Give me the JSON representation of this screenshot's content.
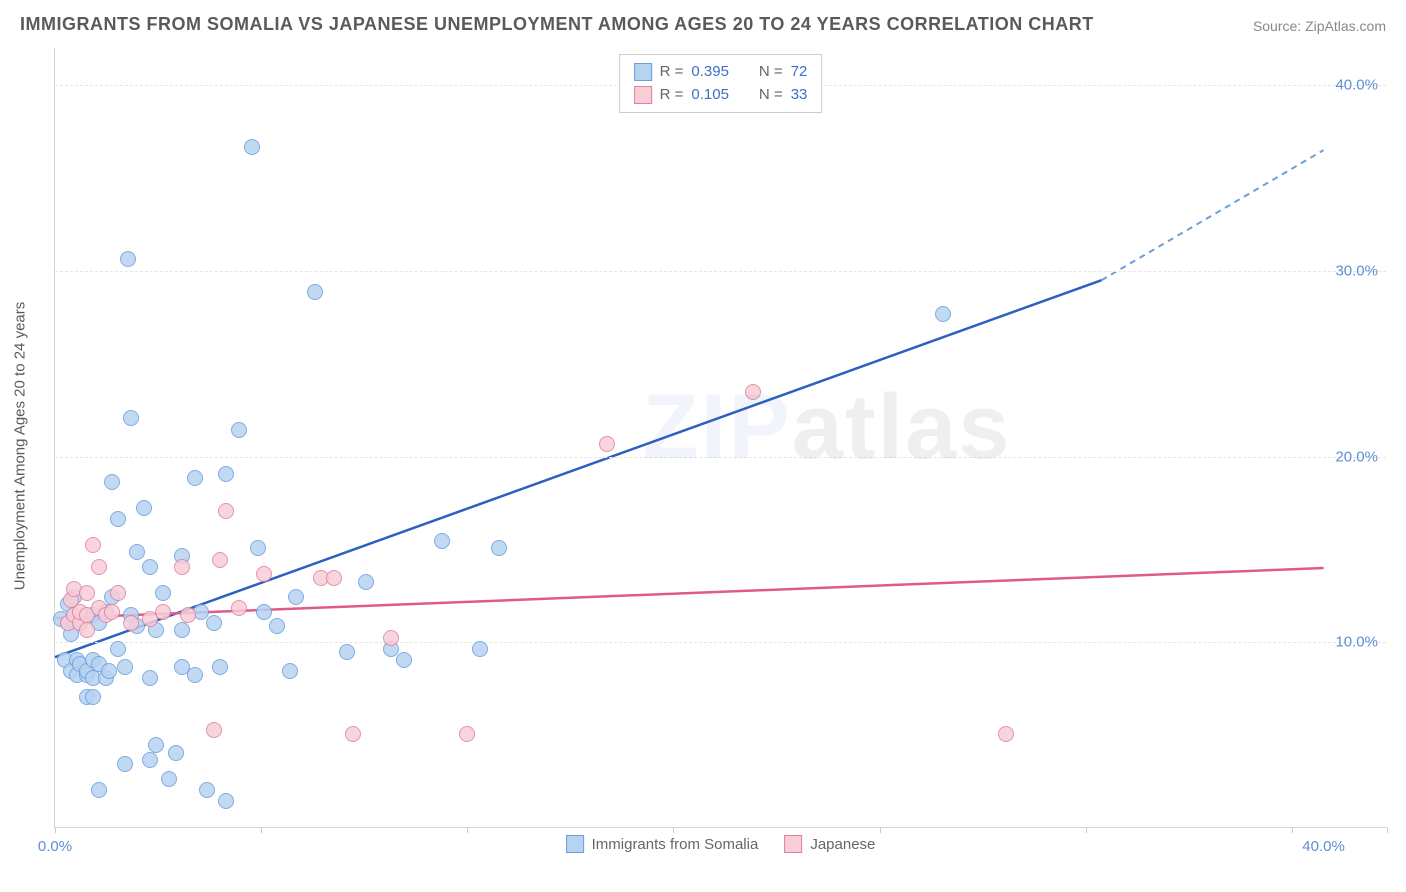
{
  "title": "IMMIGRANTS FROM SOMALIA VS JAPANESE UNEMPLOYMENT AMONG AGES 20 TO 24 YEARS CORRELATION CHART",
  "source_label": "Source: ZipAtlas.com",
  "y_axis_title": "Unemployment Among Ages 20 to 24 years",
  "watermark": {
    "zip": "ZIP",
    "atlas": "atlas"
  },
  "chart": {
    "type": "scatter",
    "background_color": "#ffffff",
    "grid_color": "#e6e6e6",
    "axis_color": "#d5d5d5",
    "tick_color": "#cccccc",
    "xlim": [
      0,
      42
    ],
    "ylim": [
      0,
      42
    ],
    "y_ticks": [
      10,
      20,
      30,
      40
    ],
    "y_tick_labels": [
      "10.0%",
      "20.0%",
      "30.0%",
      "40.0%"
    ],
    "x_tick_positions": [
      0,
      6.5,
      13,
      19.5,
      26,
      32.5,
      39,
      42
    ],
    "x_axis_labels": [
      {
        "value": 0,
        "label": "0.0%"
      },
      {
        "value": 40,
        "label": "40.0%"
      }
    ],
    "y_label_color": "#5b8fd6",
    "x_label_color": "#5b8fd6",
    "title_color": "#5a5a5a",
    "title_fontsize": 18,
    "axis_title_fontsize": 15,
    "tick_label_fontsize": 15,
    "point_radius": 8,
    "point_stroke_width": 1.5
  },
  "series": {
    "somalia": {
      "label": "Immigrants from Somalia",
      "fill": "#b7d3f2",
      "stroke": "#6a9fdc",
      "line_color": "#2d5fc0",
      "line_width": 2.5,
      "dash_extension_color": "#6a9fdc",
      "regression": {
        "x1": 0,
        "y1": 9.2,
        "x2": 33,
        "y2": 29.5,
        "ext_x": 40,
        "ext_y": 36.5
      },
      "stats": {
        "r": "0.395",
        "n": "72"
      },
      "points": [
        [
          0.2,
          11.2
        ],
        [
          0.3,
          9.0
        ],
        [
          0.4,
          11.0
        ],
        [
          0.4,
          12.0
        ],
        [
          0.5,
          8.4
        ],
        [
          0.5,
          10.4
        ],
        [
          0.6,
          12.4
        ],
        [
          0.6,
          11.4
        ],
        [
          0.7,
          9.0
        ],
        [
          0.7,
          8.2
        ],
        [
          0.8,
          8.8
        ],
        [
          0.8,
          11.0
        ],
        [
          1.0,
          8.2
        ],
        [
          1.0,
          8.4
        ],
        [
          1.0,
          7.0
        ],
        [
          1.2,
          11.4
        ],
        [
          1.2,
          9.0
        ],
        [
          1.2,
          8.0
        ],
        [
          1.4,
          2.0
        ],
        [
          1.4,
          8.8
        ],
        [
          1.4,
          11.0
        ],
        [
          1.6,
          11.6
        ],
        [
          1.6,
          8.0
        ],
        [
          1.7,
          8.4
        ],
        [
          1.8,
          18.6
        ],
        [
          1.8,
          12.4
        ],
        [
          2.0,
          9.6
        ],
        [
          2.0,
          16.6
        ],
        [
          2.2,
          3.4
        ],
        [
          2.2,
          8.6
        ],
        [
          2.3,
          30.6
        ],
        [
          2.4,
          22.0
        ],
        [
          2.4,
          11.4
        ],
        [
          2.6,
          14.8
        ],
        [
          2.6,
          10.8
        ],
        [
          2.8,
          17.2
        ],
        [
          3.0,
          14.0
        ],
        [
          3.0,
          3.6
        ],
        [
          3.0,
          8.0
        ],
        [
          3.2,
          10.6
        ],
        [
          3.2,
          4.4
        ],
        [
          3.4,
          12.6
        ],
        [
          3.6,
          2.6
        ],
        [
          3.8,
          4.0
        ],
        [
          4.0,
          8.6
        ],
        [
          4.0,
          10.6
        ],
        [
          4.0,
          14.6
        ],
        [
          4.4,
          18.8
        ],
        [
          4.4,
          8.2
        ],
        [
          4.6,
          11.6
        ],
        [
          4.8,
          2.0
        ],
        [
          5.0,
          11.0
        ],
        [
          5.2,
          8.6
        ],
        [
          5.4,
          1.4
        ],
        [
          5.4,
          19.0
        ],
        [
          5.8,
          21.4
        ],
        [
          6.2,
          36.6
        ],
        [
          6.4,
          15.0
        ],
        [
          6.6,
          11.6
        ],
        [
          7.0,
          10.8
        ],
        [
          7.4,
          8.4
        ],
        [
          7.6,
          12.4
        ],
        [
          8.2,
          28.8
        ],
        [
          9.2,
          9.4
        ],
        [
          9.8,
          13.2
        ],
        [
          10.6,
          9.6
        ],
        [
          11.0,
          9.0
        ],
        [
          12.2,
          15.4
        ],
        [
          13.4,
          9.6
        ],
        [
          14.0,
          15.0
        ],
        [
          28.0,
          27.6
        ],
        [
          1.2,
          7.0
        ]
      ]
    },
    "japanese": {
      "label": "Japanese",
      "fill": "#f7cdd8",
      "stroke": "#e27f9e",
      "line_color": "#e05a87",
      "line_width": 2.5,
      "regression": {
        "x1": 0,
        "y1": 11.3,
        "x2": 40,
        "y2": 14.0
      },
      "stats": {
        "r": "0.105",
        "n": "33"
      },
      "points": [
        [
          0.4,
          11.0
        ],
        [
          0.5,
          12.2
        ],
        [
          0.6,
          11.4
        ],
        [
          0.6,
          12.8
        ],
        [
          0.8,
          11.0
        ],
        [
          0.8,
          11.6
        ],
        [
          1.0,
          10.6
        ],
        [
          1.0,
          11.4
        ],
        [
          1.0,
          12.6
        ],
        [
          1.4,
          11.8
        ],
        [
          1.4,
          14.0
        ],
        [
          1.6,
          11.4
        ],
        [
          1.8,
          11.6
        ],
        [
          2.0,
          12.6
        ],
        [
          2.4,
          11.0
        ],
        [
          3.0,
          11.2
        ],
        [
          3.4,
          11.6
        ],
        [
          4.0,
          14.0
        ],
        [
          4.2,
          11.4
        ],
        [
          5.0,
          5.2
        ],
        [
          5.2,
          14.4
        ],
        [
          5.4,
          17.0
        ],
        [
          5.8,
          11.8
        ],
        [
          6.6,
          13.6
        ],
        [
          8.4,
          13.4
        ],
        [
          8.8,
          13.4
        ],
        [
          9.4,
          5.0
        ],
        [
          10.6,
          10.2
        ],
        [
          13.0,
          5.0
        ],
        [
          17.4,
          20.6
        ],
        [
          22.0,
          23.4
        ],
        [
          30.0,
          5.0
        ],
        [
          1.2,
          15.2
        ]
      ]
    }
  },
  "stats_box": {
    "r_label": "R =",
    "n_label": "N ="
  }
}
